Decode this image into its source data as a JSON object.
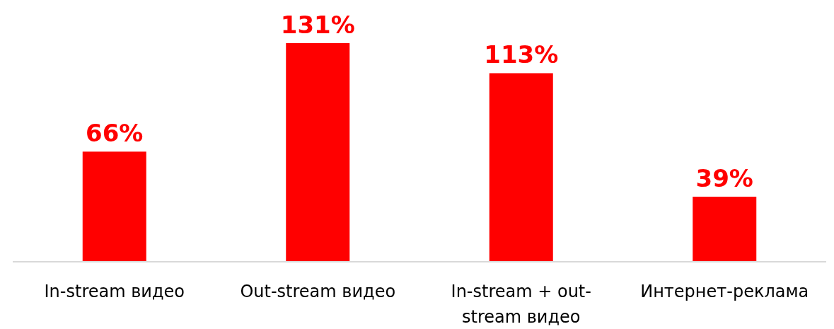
{
  "chart_data": {
    "type": "bar",
    "categories": [
      "In-stream видео",
      "Out-stream видео",
      "In-stream + out-stream видео",
      "Интернет-реклама"
    ],
    "values": [
      66,
      131,
      113,
      39
    ],
    "color": "#ff0000",
    "value_labels": [
      "66%",
      "131%",
      "113%",
      "39%"
    ],
    "grid": false
  }
}
